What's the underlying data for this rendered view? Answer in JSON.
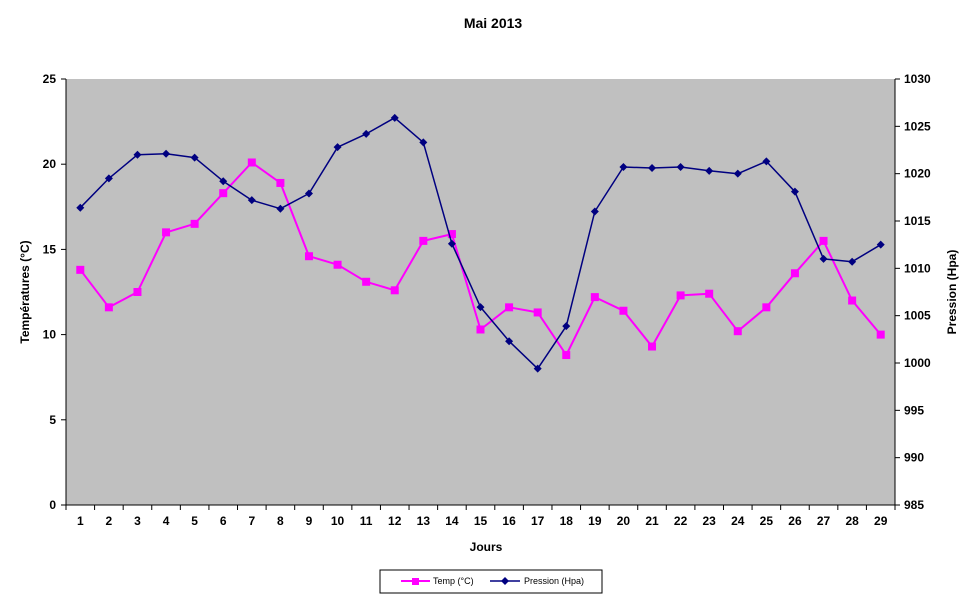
{
  "chart_data": {
    "type": "line",
    "title": "Mai 2013",
    "xlabel": "Jours",
    "ylabel_left": "Températures (°C)",
    "ylabel_right": "Pression (Hpa)",
    "x": [
      1,
      2,
      3,
      4,
      5,
      6,
      7,
      8,
      9,
      10,
      11,
      12,
      13,
      14,
      15,
      16,
      17,
      18,
      19,
      20,
      21,
      22,
      23,
      24,
      25,
      26,
      27,
      28,
      29
    ],
    "x_tick_labels": [
      "1",
      "2",
      "3",
      "4",
      "5",
      "6",
      "7",
      "8",
      "9",
      "10",
      "11",
      "12",
      "13",
      "14",
      "15",
      "16",
      "17",
      "18",
      "19",
      "20",
      "21",
      "22",
      "23",
      "24",
      "25",
      "26",
      "27",
      "28",
      "29"
    ],
    "ylim_left": [
      0,
      25
    ],
    "yticks_left": [
      "0",
      "5",
      "10",
      "15",
      "20",
      "25"
    ],
    "ylim_right": [
      985,
      1030
    ],
    "yticks_right": [
      "985",
      "990",
      "995",
      "1000",
      "1005",
      "1010",
      "1015",
      "1020",
      "1025",
      "1030"
    ],
    "grid": false,
    "legend_position": "bottom",
    "plot_background": "#c0c0c0",
    "series": [
      {
        "name": "Temp (°C)",
        "axis": "left",
        "color": "#ff00ff",
        "marker": "square",
        "values": [
          13.8,
          11.6,
          12.5,
          16.0,
          16.5,
          18.3,
          20.1,
          18.9,
          14.6,
          14.1,
          13.1,
          12.6,
          15.5,
          15.9,
          10.3,
          11.6,
          11.3,
          8.8,
          12.2,
          11.4,
          9.3,
          12.3,
          12.4,
          10.2,
          11.6,
          13.6,
          15.5,
          12.0,
          10.0
        ]
      },
      {
        "name": "Pression (Hpa)",
        "axis": "right",
        "color": "#000080",
        "marker": "diamond",
        "values": [
          1016.4,
          1019.5,
          1022.0,
          1022.1,
          1021.7,
          1019.2,
          1017.2,
          1016.3,
          1017.9,
          1022.8,
          1024.2,
          1025.9,
          1023.3,
          1012.6,
          1005.9,
          1002.3,
          999.4,
          1003.9,
          1016.0,
          1020.7,
          1020.6,
          1020.7,
          1020.3,
          1020.0,
          1021.3,
          1018.1,
          1011.0,
          1010.7,
          1012.5
        ]
      }
    ]
  }
}
